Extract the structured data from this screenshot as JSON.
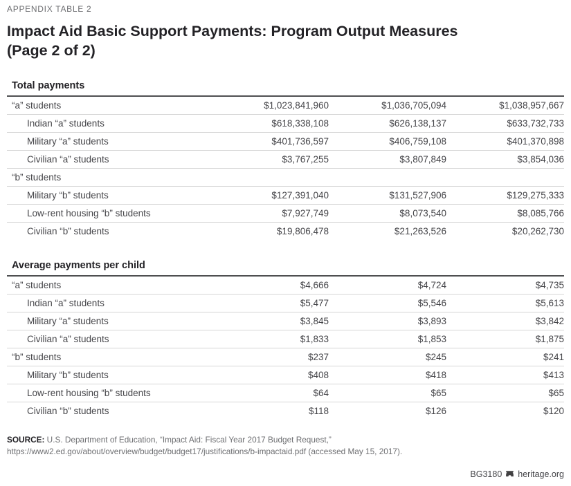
{
  "header": {
    "eyebrow": "APPENDIX TABLE 2",
    "title_lines": [
      "Impact Aid Basic Support Payments: Program Output Measures",
      "(Page 2 of 2)"
    ]
  },
  "chart_data": {
    "type": "table",
    "num_value_columns": 3,
    "column_headers": [],
    "sections": [
      {
        "header": "Total payments",
        "rows": [
          {
            "label": "“a” students",
            "indent": 0,
            "values": [
              "$1,023,841,960",
              "$1,036,705,094",
              "$1,038,957,667"
            ]
          },
          {
            "label": "Indian “a” students",
            "indent": 1,
            "values": [
              "$618,338,108",
              "$626,138,137",
              "$633,732,733"
            ]
          },
          {
            "label": "Military “a” students",
            "indent": 1,
            "values": [
              "$401,736,597",
              "$406,759,108",
              "$401,370,898"
            ]
          },
          {
            "label": "Civilian “a” students",
            "indent": 1,
            "values": [
              "$3,767,255",
              "$3,807,849",
              "$3,854,036"
            ]
          },
          {
            "label": "“b” students",
            "indent": 0,
            "values": [
              "",
              "",
              ""
            ]
          },
          {
            "label": "Military “b” students",
            "indent": 1,
            "values": [
              "$127,391,040",
              "$131,527,906",
              "$129,275,333"
            ]
          },
          {
            "label": "Low-rent housing “b” students",
            "indent": 1,
            "values": [
              "$7,927,749",
              "$8,073,540",
              "$8,085,766"
            ]
          },
          {
            "label": "Civilian “b” students",
            "indent": 1,
            "values": [
              "$19,806,478",
              "$21,263,526",
              "$20,262,730"
            ]
          }
        ]
      },
      {
        "header": "Average payments per child",
        "rows": [
          {
            "label": "“a” students",
            "indent": 0,
            "values": [
              "$4,666",
              "$4,724",
              "$4,735"
            ]
          },
          {
            "label": "Indian “a” students",
            "indent": 1,
            "values": [
              "$5,477",
              "$5,546",
              "$5,613"
            ]
          },
          {
            "label": "Military “a” students",
            "indent": 1,
            "values": [
              "$3,845",
              "$3,893",
              "$3,842"
            ]
          },
          {
            "label": "Civilian “a” students",
            "indent": 1,
            "values": [
              "$1,833",
              "$1,853",
              "$1,875"
            ]
          },
          {
            "label": "“b” students",
            "indent": 0,
            "values": [
              "$237",
              "$245",
              "$241"
            ]
          },
          {
            "label": "Military “b” students",
            "indent": 1,
            "values": [
              "$408",
              "$418",
              "$413"
            ]
          },
          {
            "label": "Low-rent housing “b” students",
            "indent": 1,
            "values": [
              "$64",
              "$65",
              "$65"
            ]
          },
          {
            "label": "Civilian “b” students",
            "indent": 1,
            "values": [
              "$118",
              "$126",
              "$120"
            ]
          }
        ]
      }
    ]
  },
  "footer": {
    "source_label": "SOURCE:",
    "source_text": " U.S. Department of Education, “Impact Aid: Fiscal Year 2017 Budget Request,” https://www2.ed.gov/about/overview/budget/budget17/justifications/b-impactaid.pdf (accessed May 15, 2017).",
    "doc_id": "BG3180",
    "site": "heritage.org",
    "icon": "heritage-bell-icon"
  },
  "colors": {
    "text-dark": "#232226",
    "text-body": "#454549",
    "text-muted": "#6d6e71",
    "rule-dark": "#4e4f51",
    "rule-light": "#d5d5d5"
  }
}
